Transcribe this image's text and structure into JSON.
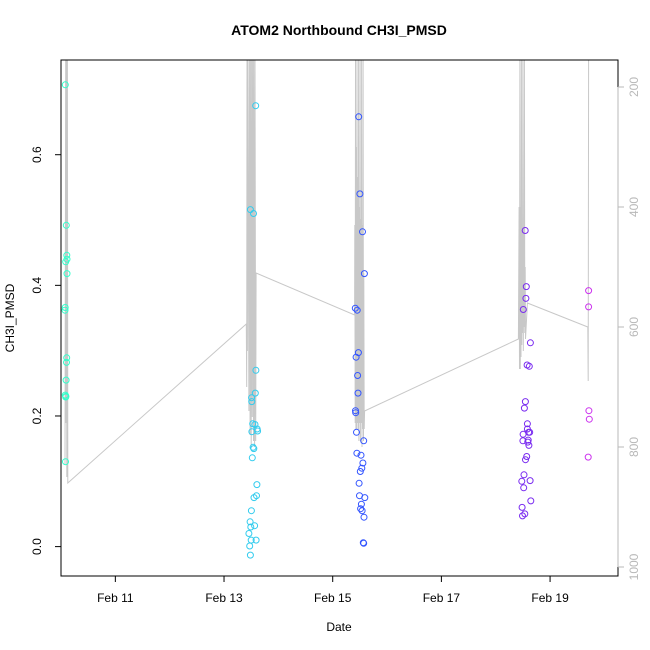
{
  "chart_data": {
    "type": "scatter",
    "title": "ATOM2 Northbound CH3I_PMSD",
    "xlabel": "Date",
    "ylabel": "CH3I_PMSD",
    "xlim": [
      "2016-02-10 00:00",
      "2016-02-20 06:00"
    ],
    "ylim": [
      -0.045,
      0.745
    ],
    "y2lim": [
      1015,
      155
    ],
    "xticks": [
      {
        "x": "2016-02-11",
        "label": "Feb 11"
      },
      {
        "x": "2016-02-13",
        "label": "Feb 13"
      },
      {
        "x": "2016-02-15",
        "label": "Feb 15"
      },
      {
        "x": "2016-02-17",
        "label": "Feb 17"
      },
      {
        "x": "2016-02-19",
        "label": "Feb 19"
      }
    ],
    "yticks": [
      {
        "y": 0.0,
        "label": "0.0"
      },
      {
        "y": 0.2,
        "label": "0.2"
      },
      {
        "y": 0.4,
        "label": "0.4"
      },
      {
        "y": 0.6,
        "label": "0.6"
      }
    ],
    "y2ticks": [
      {
        "y": 200,
        "label": "200"
      },
      {
        "y": 400,
        "label": "400"
      },
      {
        "y": 600,
        "label": "600"
      },
      {
        "y": 800,
        "label": "800"
      },
      {
        "y": 1000,
        "label": "1000"
      }
    ],
    "grid": false,
    "colors": {
      "axis": "#000000",
      "secondary_axis": "#b8b8b8",
      "pressure_line": "#c8c8c8"
    },
    "series": [
      {
        "color": "#33ffcc",
        "points": [
          {
            "x": "2016-02-10 01:55",
            "y": 0.707
          },
          {
            "x": "2016-02-10 01:50",
            "y": 0.366
          },
          {
            "x": "2016-02-10 01:45",
            "y": 0.362
          },
          {
            "x": "2016-02-10 01:55",
            "y": 0.232
          },
          {
            "x": "2016-02-10 02:00",
            "y": 0.13
          },
          {
            "x": "2016-02-10 02:05",
            "y": 0.436
          },
          {
            "x": "2016-02-10 02:10",
            "y": 0.23
          },
          {
            "x": "2016-02-10 02:15",
            "y": 0.255
          },
          {
            "x": "2016-02-10 02:20",
            "y": 0.492
          },
          {
            "x": "2016-02-10 02:25",
            "y": 0.282
          },
          {
            "x": "2016-02-10 02:30",
            "y": 0.289
          },
          {
            "x": "2016-02-10 02:35",
            "y": 0.446
          },
          {
            "x": "2016-02-10 02:40",
            "y": 0.44
          },
          {
            "x": "2016-02-10 02:40",
            "y": 0.418
          },
          {
            "x": "2016-02-10 02:05",
            "y": 0.229
          }
        ]
      },
      {
        "color": "#33ccee",
        "points": [
          {
            "x": "2016-02-13 11:00",
            "y": 0.02
          },
          {
            "x": "2016-02-13 11:20",
            "y": 0.001
          },
          {
            "x": "2016-02-13 11:40",
            "y": -0.013
          },
          {
            "x": "2016-02-13 11:30",
            "y": 0.038
          },
          {
            "x": "2016-02-13 11:50",
            "y": 0.03
          },
          {
            "x": "2016-02-13 12:00",
            "y": 0.01
          },
          {
            "x": "2016-02-13 12:05",
            "y": 0.055
          },
          {
            "x": "2016-02-13 11:40",
            "y": 0.516
          },
          {
            "x": "2016-02-13 12:10",
            "y": 0.228
          },
          {
            "x": "2016-02-13 12:15",
            "y": 0.222
          },
          {
            "x": "2016-02-13 12:20",
            "y": 0.176
          },
          {
            "x": "2016-02-13 12:30",
            "y": 0.136
          },
          {
            "x": "2016-02-13 12:40",
            "y": 0.188
          },
          {
            "x": "2016-02-13 12:50",
            "y": 0.152
          },
          {
            "x": "2016-02-13 13:00",
            "y": 0.51
          },
          {
            "x": "2016-02-13 13:10",
            "y": 0.15
          },
          {
            "x": "2016-02-13 13:15",
            "y": 0.075
          },
          {
            "x": "2016-02-13 13:30",
            "y": 0.032
          },
          {
            "x": "2016-02-13 13:40",
            "y": 0.187
          },
          {
            "x": "2016-02-13 13:50",
            "y": 0.235
          },
          {
            "x": "2016-02-13 14:00",
            "y": 0.675
          },
          {
            "x": "2016-02-13 14:05",
            "y": 0.27
          },
          {
            "x": "2016-02-13 14:10",
            "y": 0.01
          },
          {
            "x": "2016-02-13 14:20",
            "y": 0.078
          },
          {
            "x": "2016-02-13 14:30",
            "y": 0.095
          },
          {
            "x": "2016-02-13 14:40",
            "y": 0.18
          },
          {
            "x": "2016-02-13 14:50",
            "y": 0.177
          }
        ]
      },
      {
        "color": "#3355ff",
        "points": [
          {
            "x": "2016-02-15 10:00",
            "y": 0.365
          },
          {
            "x": "2016-02-15 10:05",
            "y": 0.208
          },
          {
            "x": "2016-02-15 10:10",
            "y": 0.205
          },
          {
            "x": "2016-02-15 10:20",
            "y": 0.29
          },
          {
            "x": "2016-02-15 10:30",
            "y": 0.175
          },
          {
            "x": "2016-02-15 10:40",
            "y": 0.143
          },
          {
            "x": "2016-02-15 10:50",
            "y": 0.362
          },
          {
            "x": "2016-02-15 11:00",
            "y": 0.262
          },
          {
            "x": "2016-02-15 11:10",
            "y": 0.235
          },
          {
            "x": "2016-02-15 11:20",
            "y": 0.297
          },
          {
            "x": "2016-02-15 11:30",
            "y": 0.658
          },
          {
            "x": "2016-02-15 11:40",
            "y": 0.097
          },
          {
            "x": "2016-02-15 11:50",
            "y": 0.078
          },
          {
            "x": "2016-02-15 12:00",
            "y": 0.54
          },
          {
            "x": "2016-02-15 12:10",
            "y": 0.115
          },
          {
            "x": "2016-02-15 12:20",
            "y": 0.058
          },
          {
            "x": "2016-02-15 12:30",
            "y": 0.14
          },
          {
            "x": "2016-02-15 12:40",
            "y": 0.065
          },
          {
            "x": "2016-02-15 12:50",
            "y": 0.12
          },
          {
            "x": "2016-02-15 13:00",
            "y": 0.055
          },
          {
            "x": "2016-02-15 13:10",
            "y": 0.482
          },
          {
            "x": "2016-02-15 13:20",
            "y": 0.128
          },
          {
            "x": "2016-02-15 13:30",
            "y": 0.006
          },
          {
            "x": "2016-02-15 13:40",
            "y": 0.005
          },
          {
            "x": "2016-02-15 13:50",
            "y": 0.045
          },
          {
            "x": "2016-02-15 14:00",
            "y": 0.418
          },
          {
            "x": "2016-02-15 14:10",
            "y": 0.075
          },
          {
            "x": "2016-02-15 13:40",
            "y": 0.162
          }
        ]
      },
      {
        "color": "#7a2cf0",
        "points": [
          {
            "x": "2016-02-18 11:30",
            "y": 0.1
          },
          {
            "x": "2016-02-18 11:40",
            "y": 0.06
          },
          {
            "x": "2016-02-18 11:50",
            "y": 0.047
          },
          {
            "x": "2016-02-18 12:00",
            "y": 0.162
          },
          {
            "x": "2016-02-18 12:05",
            "y": 0.172
          },
          {
            "x": "2016-02-18 12:10",
            "y": 0.363
          },
          {
            "x": "2016-02-18 12:20",
            "y": 0.09
          },
          {
            "x": "2016-02-18 12:30",
            "y": 0.11
          },
          {
            "x": "2016-02-18 12:40",
            "y": 0.212
          },
          {
            "x": "2016-02-18 12:50",
            "y": 0.05
          },
          {
            "x": "2016-02-18 13:00",
            "y": 0.484
          },
          {
            "x": "2016-02-18 13:05",
            "y": 0.222
          },
          {
            "x": "2016-02-18 13:10",
            "y": 0.133
          },
          {
            "x": "2016-02-18 13:20",
            "y": 0.38
          },
          {
            "x": "2016-02-18 13:30",
            "y": 0.398
          },
          {
            "x": "2016-02-18 13:40",
            "y": 0.138
          },
          {
            "x": "2016-02-18 13:50",
            "y": 0.278
          },
          {
            "x": "2016-02-18 14:00",
            "y": 0.18
          },
          {
            "x": "2016-02-18 14:10",
            "y": 0.16
          },
          {
            "x": "2016-02-18 14:20",
            "y": 0.163
          },
          {
            "x": "2016-02-18 14:30",
            "y": 0.175
          },
          {
            "x": "2016-02-18 14:40",
            "y": 0.155
          },
          {
            "x": "2016-02-18 14:50",
            "y": 0.276
          },
          {
            "x": "2016-02-18 15:00",
            "y": 0.175
          },
          {
            "x": "2016-02-18 15:10",
            "y": 0.101
          },
          {
            "x": "2016-02-18 15:20",
            "y": 0.312
          },
          {
            "x": "2016-02-18 15:30",
            "y": 0.07
          },
          {
            "x": "2016-02-18 14:00",
            "y": 0.188
          }
        ]
      },
      {
        "color": "#cc33ee",
        "points": [
          {
            "x": "2016-02-19 17:00",
            "y": 0.392
          },
          {
            "x": "2016-02-19 17:00",
            "y": 0.367
          },
          {
            "x": "2016-02-19 17:10",
            "y": 0.208
          },
          {
            "x": "2016-02-19 17:20",
            "y": 0.195
          },
          {
            "x": "2016-02-19 16:50",
            "y": 0.137
          }
        ]
      }
    ],
    "pressure_line": [
      [
        "2016-02-10 01:45",
        830
      ],
      [
        "2016-02-10 02:05",
        150
      ],
      [
        "2016-02-10 02:10",
        760
      ],
      [
        "2016-02-10 02:25",
        150
      ],
      [
        "2016-02-10 02:35",
        850
      ],
      [
        "2016-02-10 02:50",
        150
      ],
      [
        "2016-02-10 03:00",
        860
      ],
      [
        "2016-02-13 09:50",
        595
      ],
      [
        "2016-02-13 10:00",
        700
      ],
      [
        "2016-02-13 10:10",
        150
      ],
      [
        "2016-02-13 10:20",
        640
      ],
      [
        "2016-02-13 10:30",
        150
      ],
      [
        "2016-02-13 11:00",
        740
      ],
      [
        "2016-02-13 11:10",
        150
      ],
      [
        "2016-02-13 11:30",
        780
      ],
      [
        "2016-02-13 11:40",
        150
      ],
      [
        "2016-02-13 12:00",
        800
      ],
      [
        "2016-02-13 12:10",
        150
      ],
      [
        "2016-02-13 12:30",
        750
      ],
      [
        "2016-02-13 12:40",
        150
      ],
      [
        "2016-02-13 13:00",
        790
      ],
      [
        "2016-02-13 13:10",
        150
      ],
      [
        "2016-02-13 13:30",
        800
      ],
      [
        "2016-02-13 13:40",
        150
      ],
      [
        "2016-02-13 14:00",
        790
      ],
      [
        "2016-02-13 14:10",
        510
      ],
      [
        "2016-02-15 09:40",
        580
      ],
      [
        "2016-02-15 09:45",
        430
      ],
      [
        "2016-02-15 09:55",
        760
      ],
      [
        "2016-02-15 10:05",
        150
      ],
      [
        "2016-02-15 10:15",
        770
      ],
      [
        "2016-02-15 10:25",
        300
      ],
      [
        "2016-02-15 10:35",
        770
      ],
      [
        "2016-02-15 10:45",
        150
      ],
      [
        "2016-02-15 10:55",
        760
      ],
      [
        "2016-02-15 11:05",
        350
      ],
      [
        "2016-02-15 11:15",
        770
      ],
      [
        "2016-02-15 11:25",
        150
      ],
      [
        "2016-02-15 11:35",
        790
      ],
      [
        "2016-02-15 11:45",
        400
      ],
      [
        "2016-02-15 11:55",
        760
      ],
      [
        "2016-02-15 12:05",
        150
      ],
      [
        "2016-02-15 12:15",
        790
      ],
      [
        "2016-02-15 12:25",
        420
      ],
      [
        "2016-02-15 12:35",
        760
      ],
      [
        "2016-02-15 12:45",
        150
      ],
      [
        "2016-02-15 12:55",
        800
      ],
      [
        "2016-02-15 13:05",
        430
      ],
      [
        "2016-02-15 13:15",
        770
      ],
      [
        "2016-02-15 13:25",
        150
      ],
      [
        "2016-02-15 13:35",
        790
      ],
      [
        "2016-02-15 13:45",
        510
      ],
      [
        "2016-02-15 13:55",
        770
      ],
      [
        "2016-02-15 14:05",
        740
      ],
      [
        "2016-02-18 10:00",
        620
      ],
      [
        "2016-02-18 10:20",
        400
      ],
      [
        "2016-02-18 10:30",
        670
      ],
      [
        "2016-02-18 10:40",
        150
      ],
      [
        "2016-02-18 10:50",
        670
      ],
      [
        "2016-02-18 11:00",
        400
      ],
      [
        "2016-02-18 11:10",
        650
      ],
      [
        "2016-02-18 11:20",
        150
      ],
      [
        "2016-02-18 11:30",
        630
      ],
      [
        "2016-02-18 11:40",
        450
      ],
      [
        "2016-02-18 11:50",
        610
      ],
      [
        "2016-02-18 12:00",
        150
      ],
      [
        "2016-02-18 12:10",
        640
      ],
      [
        "2016-02-18 12:20",
        460
      ],
      [
        "2016-02-18 12:30",
        600
      ],
      [
        "2016-02-18 12:40",
        150
      ],
      [
        "2016-02-18 12:50",
        610
      ],
      [
        "2016-02-18 13:00",
        500
      ],
      [
        "2016-02-18 13:10",
        620
      ],
      [
        "2016-02-18 14:00",
        560
      ],
      [
        "2016-02-19 16:40",
        600
      ],
      [
        "2016-02-19 16:50",
        690
      ],
      [
        "2016-02-19 17:00",
        150
      ]
    ]
  }
}
